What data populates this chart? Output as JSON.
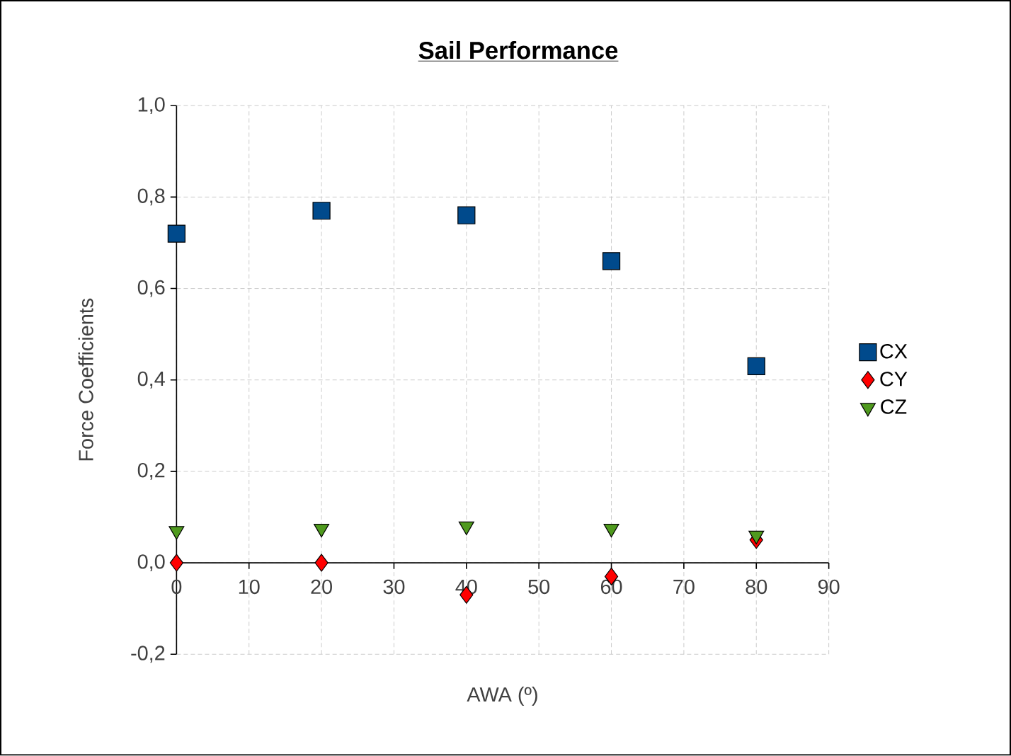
{
  "chart_data": {
    "type": "scatter",
    "title": "Sail Performance",
    "xlabel": "AWA (º)",
    "ylabel": "Force Coefficients",
    "x": [
      0,
      20,
      40,
      60,
      80
    ],
    "series": [
      {
        "name": "CX",
        "color": "#004a8c",
        "marker": "square",
        "values": [
          0.72,
          0.77,
          0.76,
          0.66,
          0.43
        ]
      },
      {
        "name": "CY",
        "color": "#ff0000",
        "marker": "diamond",
        "values": [
          0.0,
          0.0,
          -0.07,
          -0.03,
          0.05
        ]
      },
      {
        "name": "CZ",
        "color": "#4f9a1e",
        "marker": "triangle",
        "values": [
          0.07,
          0.075,
          0.08,
          0.075,
          0.06
        ]
      }
    ],
    "xlim": [
      0,
      90
    ],
    "xticks": [
      0,
      10,
      20,
      30,
      40,
      50,
      60,
      70,
      80,
      90
    ],
    "ylim": [
      -0.2,
      1.0
    ],
    "yticks": [
      {
        "value": -0.2,
        "label": "-0,2"
      },
      {
        "value": 0.0,
        "label": "0,0"
      },
      {
        "value": 0.2,
        "label": "0,2"
      },
      {
        "value": 0.4,
        "label": "0,4"
      },
      {
        "value": 0.6,
        "label": "0,6"
      },
      {
        "value": 0.8,
        "label": "0,8"
      },
      {
        "value": 1.0,
        "label": "1,0"
      }
    ],
    "grid": true,
    "legend": "right"
  }
}
